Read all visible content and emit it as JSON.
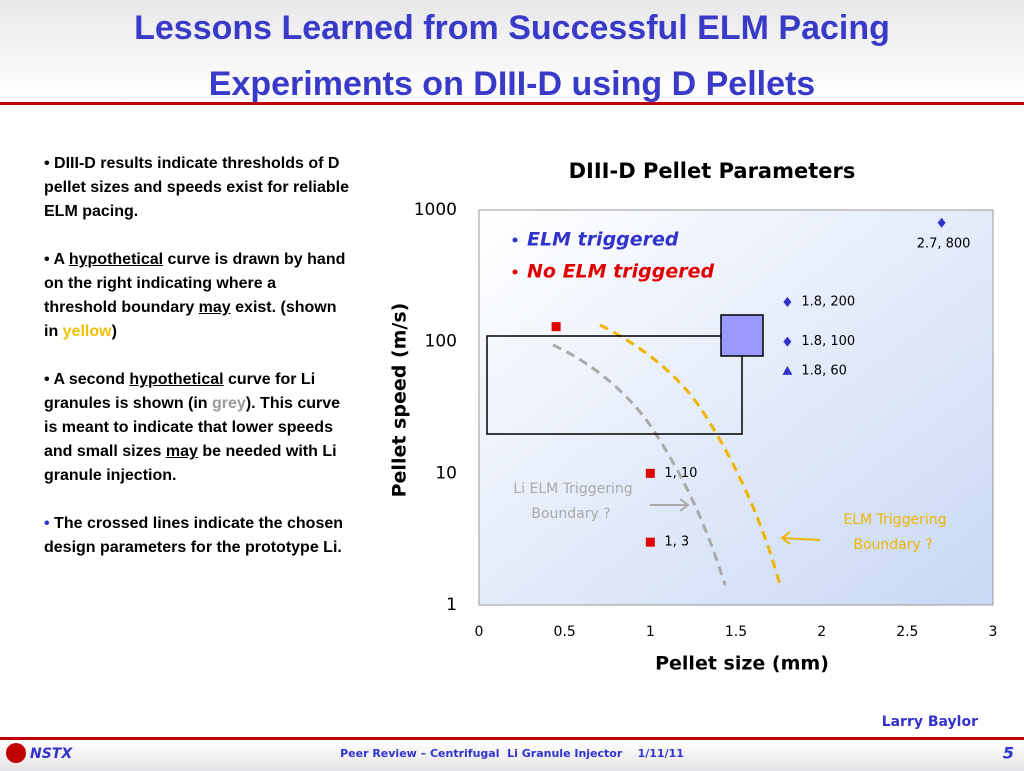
{
  "header": {
    "title_lines": [
      "Lessons Learned from Successful ELM Pacing",
      "Experiments on DIII-D using D Pellets"
    ]
  },
  "bullets": [
    [
      "DIII-D results indicate thresholds of D pellet sizes and speeds exist for reliable ELM pacing."
    ],
    [
      "A ",
      "hypothetical",
      " curve is drawn by hand on the right indicating where a threshold boundary ",
      "may",
      " exist. (shown in ",
      "yellow",
      ")"
    ],
    [
      " A second ",
      "hypothetical",
      " curve for Li granules is shown (in ",
      "grey",
      "). This curve is meant to indicate that lower speeds and small sizes ",
      "may",
      " be needed with Li granule injection."
    ],
    [
      "The crossed lines indicate the chosen design parameters for the prototype Li."
    ]
  ],
  "chart_data": {
    "type": "scatter",
    "title": "DIII-D Pellet Parameters",
    "x_label": "Pellet size (mm)",
    "y_label": "Pellet speed (m/s)",
    "xlim": [
      0,
      3
    ],
    "xticks": [
      0,
      0.5,
      1,
      1.5,
      2,
      2.5,
      3
    ],
    "ylim": [
      1,
      1000
    ],
    "yticks": [
      1,
      10,
      100,
      1000
    ],
    "yscale": "log",
    "series": [
      {
        "name": "ELM triggered",
        "color": "#3333cc",
        "markers": [
          "diamond",
          "diamond",
          "diamond",
          "triangle"
        ],
        "x": [
          2.7,
          1.8,
          1.8,
          1.8
        ],
        "values": [
          800,
          200,
          100,
          60
        ],
        "value_labels": [
          "2.7, 800",
          "1.8, 200",
          "1.8, 100",
          "1.8, 60"
        ]
      },
      {
        "name": "No ELM triggered",
        "color": "#e00000",
        "markers": [
          "square",
          "square",
          "square"
        ],
        "x": [
          1,
          1,
          0.45
        ],
        "values": [
          10,
          3,
          130
        ],
        "value_labels": [
          "1, 10",
          "1, 3",
          null
        ]
      }
    ],
    "annotations": [
      "Li ELM Triggering",
      "Boundary ?",
      "ELM Triggering",
      "Boundary ?"
    ]
  },
  "footer": {
    "author": "Larry Baylor",
    "logo": "NSTX",
    "center": "Peer Review – Centrifugal  Li Granule Injector    1/11/11",
    "page": "5"
  }
}
